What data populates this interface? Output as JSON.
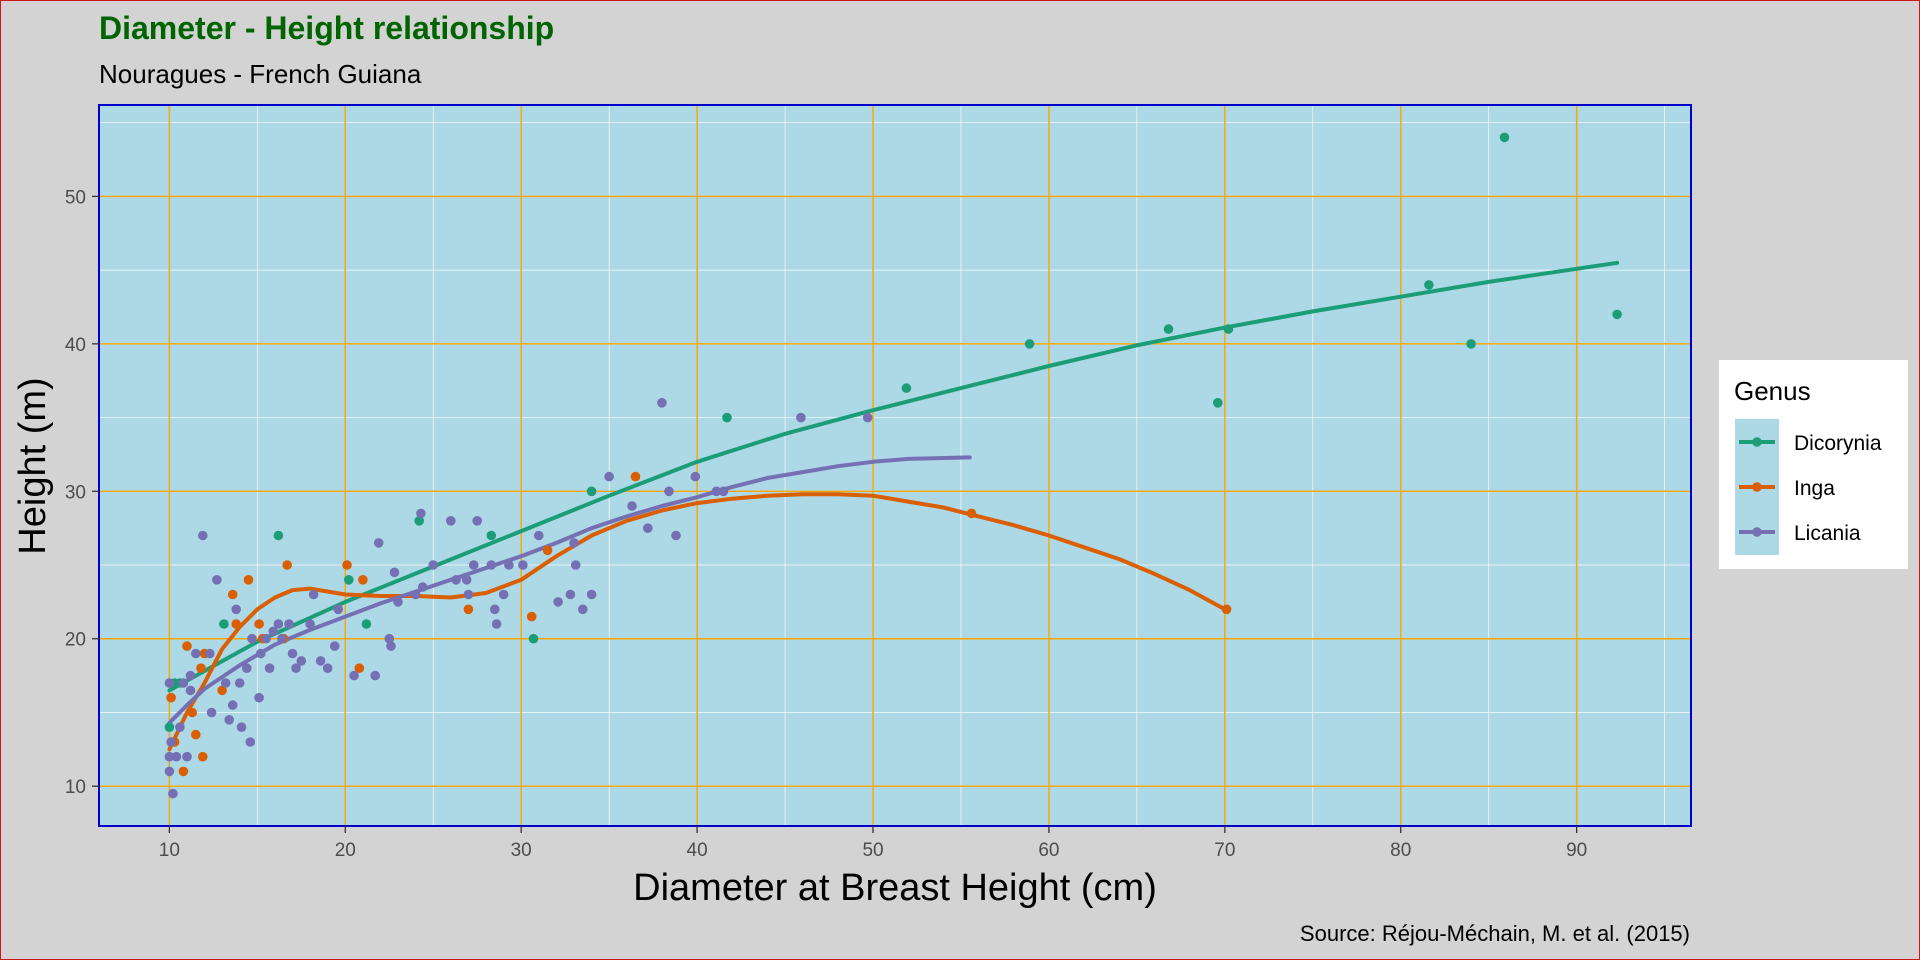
{
  "chart_data": {
    "type": "scatter",
    "title": "Diameter - Height relationship",
    "subtitle": "Nouragues - French Guiana",
    "caption": "Source: Réjou-Méchain, M. et al. (2015)",
    "xlabel": "Diameter at Breast Height (cm)",
    "ylabel": "Height (m)",
    "xlim": [
      6,
      96.5
    ],
    "ylim": [
      7.3,
      56.2
    ],
    "xticks": [
      10,
      20,
      30,
      40,
      50,
      60,
      70,
      80,
      90
    ],
    "yticks": [
      10,
      20,
      30,
      40,
      50
    ],
    "grid": true,
    "legend": {
      "title": "Genus",
      "position": "right"
    },
    "colors": {
      "panel": "#add8e6",
      "major_grid": "#ffa500",
      "minor_grid": "#ffffff",
      "panel_border": "#0000cd",
      "title": "#006400",
      "page": "#d3d3d3"
    },
    "series": [
      {
        "name": "Dicorynia",
        "color": "#1b9e77",
        "points": [
          [
            10,
            14
          ],
          [
            10.3,
            17
          ],
          [
            10.6,
            17
          ],
          [
            13.1,
            21
          ],
          [
            16.2,
            27
          ],
          [
            20.2,
            24
          ],
          [
            21.2,
            21
          ],
          [
            24.2,
            28
          ],
          [
            28.3,
            27
          ],
          [
            30.7,
            20
          ],
          [
            34,
            30
          ],
          [
            41.7,
            35
          ],
          [
            51.9,
            37
          ],
          [
            58.9,
            40
          ],
          [
            66.8,
            41
          ],
          [
            69.6,
            36
          ],
          [
            70.2,
            41
          ],
          [
            81.6,
            44
          ],
          [
            84,
            40
          ],
          [
            85.9,
            54
          ],
          [
            92.3,
            42
          ]
        ],
        "trend": [
          [
            10,
            16.5
          ],
          [
            15,
            19.8
          ],
          [
            20,
            22.5
          ],
          [
            25,
            24.9
          ],
          [
            30,
            27.3
          ],
          [
            35,
            29.7
          ],
          [
            40,
            32
          ],
          [
            45,
            33.9
          ],
          [
            50,
            35.5
          ],
          [
            55,
            37
          ],
          [
            60,
            38.5
          ],
          [
            65,
            39.9
          ],
          [
            70,
            41.1
          ],
          [
            75,
            42.2
          ],
          [
            80,
            43.2
          ],
          [
            85,
            44.2
          ],
          [
            92.3,
            45.5
          ]
        ]
      },
      {
        "name": "Inga",
        "color": "#d95f02",
        "points": [
          [
            10.1,
            16
          ],
          [
            10.3,
            13
          ],
          [
            10.8,
            11
          ],
          [
            11,
            19.5
          ],
          [
            11.3,
            15
          ],
          [
            11.5,
            13.5
          ],
          [
            11.8,
            18
          ],
          [
            11.9,
            12
          ],
          [
            12,
            19
          ],
          [
            13,
            16.5
          ],
          [
            13.6,
            23
          ],
          [
            13.8,
            21
          ],
          [
            14.5,
            24
          ],
          [
            15.1,
            21
          ],
          [
            15.3,
            20
          ],
          [
            16.5,
            20
          ],
          [
            16.7,
            25
          ],
          [
            20.1,
            25
          ],
          [
            20.8,
            18
          ],
          [
            21,
            24
          ],
          [
            27,
            22
          ],
          [
            30.6,
            21.5
          ],
          [
            31.5,
            26
          ],
          [
            36.5,
            31
          ],
          [
            55.6,
            28.5
          ],
          [
            70.1,
            22
          ]
        ],
        "trend": [
          [
            10,
            12.5
          ],
          [
            11,
            15
          ],
          [
            12,
            17
          ],
          [
            13,
            19.3
          ],
          [
            14,
            20.8
          ],
          [
            15,
            22
          ],
          [
            16,
            22.8
          ],
          [
            17,
            23.3
          ],
          [
            18,
            23.4
          ],
          [
            20,
            23
          ],
          [
            22,
            22.9
          ],
          [
            24,
            22.9
          ],
          [
            26,
            22.8
          ],
          [
            28,
            23.1
          ],
          [
            30,
            24
          ],
          [
            32,
            25.6
          ],
          [
            34,
            27
          ],
          [
            36,
            28
          ],
          [
            38,
            28.7
          ],
          [
            40,
            29.2
          ],
          [
            42,
            29.5
          ],
          [
            44,
            29.7
          ],
          [
            46,
            29.8
          ],
          [
            48,
            29.8
          ],
          [
            50,
            29.7
          ],
          [
            52,
            29.3
          ],
          [
            54,
            28.9
          ],
          [
            56,
            28.3
          ],
          [
            58,
            27.7
          ],
          [
            60,
            27
          ],
          [
            62,
            26.2
          ],
          [
            64,
            25.4
          ],
          [
            66,
            24.4
          ],
          [
            68,
            23.3
          ],
          [
            70,
            22
          ]
        ]
      },
      {
        "name": "Licania",
        "color": "#7570b3",
        "points": [
          [
            10,
            11
          ],
          [
            10,
            12
          ],
          [
            10,
            17
          ],
          [
            10.1,
            13
          ],
          [
            10.2,
            9.5
          ],
          [
            10.4,
            12
          ],
          [
            10.6,
            14
          ],
          [
            10.8,
            17
          ],
          [
            11,
            12
          ],
          [
            11.2,
            17.5
          ],
          [
            11.2,
            16.5
          ],
          [
            11.5,
            19
          ],
          [
            11.9,
            27
          ],
          [
            12.3,
            19
          ],
          [
            12.4,
            15
          ],
          [
            12.7,
            24
          ],
          [
            13.2,
            17
          ],
          [
            13.4,
            14.5
          ],
          [
            13.6,
            15.5
          ],
          [
            13.8,
            22
          ],
          [
            14,
            17
          ],
          [
            14.1,
            14
          ],
          [
            14.4,
            18
          ],
          [
            14.6,
            13
          ],
          [
            14.7,
            20
          ],
          [
            15.1,
            16
          ],
          [
            15.2,
            19
          ],
          [
            15.5,
            20
          ],
          [
            15.7,
            18
          ],
          [
            15.9,
            20.5
          ],
          [
            16.2,
            21
          ],
          [
            16.4,
            20
          ],
          [
            16.8,
            21
          ],
          [
            17,
            19
          ],
          [
            17.2,
            18
          ],
          [
            17.5,
            18.5
          ],
          [
            18,
            21
          ],
          [
            18.2,
            23
          ],
          [
            18.6,
            18.5
          ],
          [
            19,
            18
          ],
          [
            19.4,
            19.5
          ],
          [
            19.6,
            22
          ],
          [
            20.5,
            17.5
          ],
          [
            21.7,
            17.5
          ],
          [
            21.9,
            26.5
          ],
          [
            22.5,
            20
          ],
          [
            22.6,
            19.5
          ],
          [
            22.8,
            24.5
          ],
          [
            23,
            22.5
          ],
          [
            24,
            23
          ],
          [
            24.3,
            28.5
          ],
          [
            24.4,
            23.5
          ],
          [
            25,
            25
          ],
          [
            26,
            28
          ],
          [
            26.3,
            24
          ],
          [
            26.9,
            24
          ],
          [
            27,
            23
          ],
          [
            27.3,
            25
          ],
          [
            27.5,
            28
          ],
          [
            28.3,
            25
          ],
          [
            28.5,
            22
          ],
          [
            28.6,
            21
          ],
          [
            29,
            23
          ],
          [
            29.3,
            25
          ],
          [
            30.1,
            25
          ],
          [
            31,
            27
          ],
          [
            32.1,
            22.5
          ],
          [
            32.8,
            23
          ],
          [
            33,
            26.5
          ],
          [
            33.1,
            25
          ],
          [
            33.5,
            22
          ],
          [
            34,
            23
          ],
          [
            35,
            31
          ],
          [
            36.3,
            29
          ],
          [
            37.2,
            27.5
          ],
          [
            38,
            36
          ],
          [
            38.4,
            30
          ],
          [
            38.8,
            27
          ],
          [
            39.9,
            31
          ],
          [
            41.1,
            30
          ],
          [
            41.5,
            30
          ],
          [
            45.9,
            35
          ],
          [
            49.7,
            35
          ]
        ],
        "trend": [
          [
            10,
            14.3
          ],
          [
            11,
            15.5
          ],
          [
            12,
            16.6
          ],
          [
            14,
            18.2
          ],
          [
            16,
            19.6
          ],
          [
            18,
            20.6
          ],
          [
            20,
            21.5
          ],
          [
            22,
            22.4
          ],
          [
            24,
            23.2
          ],
          [
            26,
            24
          ],
          [
            28,
            24.8
          ],
          [
            30,
            25.6
          ],
          [
            32,
            26.5
          ],
          [
            34,
            27.5
          ],
          [
            36,
            28.3
          ],
          [
            38,
            29
          ],
          [
            40,
            29.6
          ],
          [
            42,
            30.3
          ],
          [
            44,
            30.9
          ],
          [
            46,
            31.3
          ],
          [
            48,
            31.7
          ],
          [
            50,
            32
          ],
          [
            52,
            32.2
          ],
          [
            55.5,
            32.3
          ]
        ]
      }
    ]
  }
}
